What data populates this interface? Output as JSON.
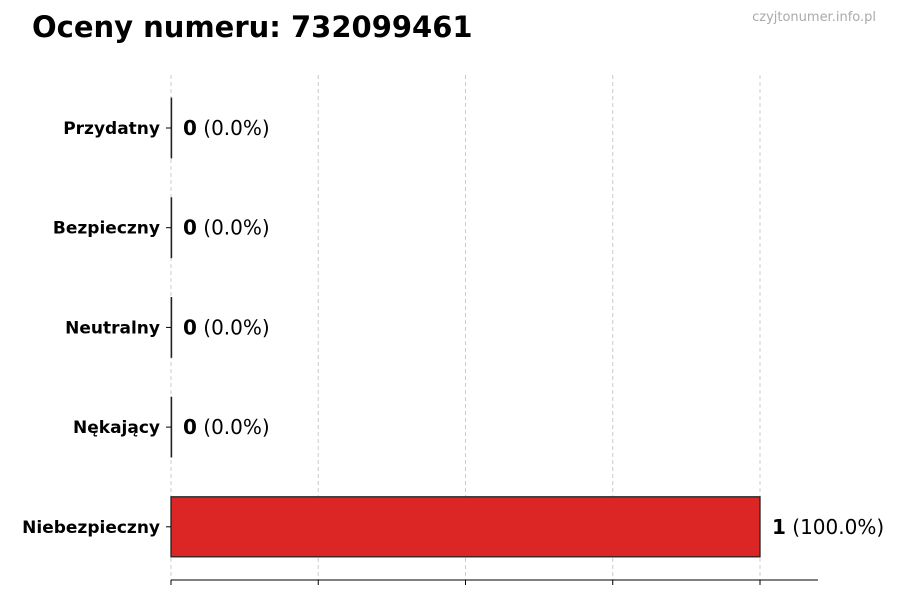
{
  "watermark": "czyjtonumer.info.pl",
  "chart_data": {
    "type": "bar",
    "orientation": "horizontal",
    "title": "Oceny numeru: 732099461",
    "categories": [
      "Przydatny",
      "Bezpieczny",
      "Neutralny",
      "Nękający",
      "Niebezpieczny"
    ],
    "values": [
      0,
      0,
      0,
      0,
      1
    ],
    "labels": [
      "(0.0%)",
      "(0.0%)",
      "(0.0%)",
      "(0.0%)",
      "(100.0%)"
    ],
    "bar_color": "#dc2626",
    "xlim": [
      0,
      1.1
    ],
    "xticks": [
      0,
      0.25,
      0.5,
      0.75,
      1
    ],
    "xtick_labels_shown": false,
    "grid": "vertical dashed",
    "xlabel": "",
    "ylabel": ""
  }
}
